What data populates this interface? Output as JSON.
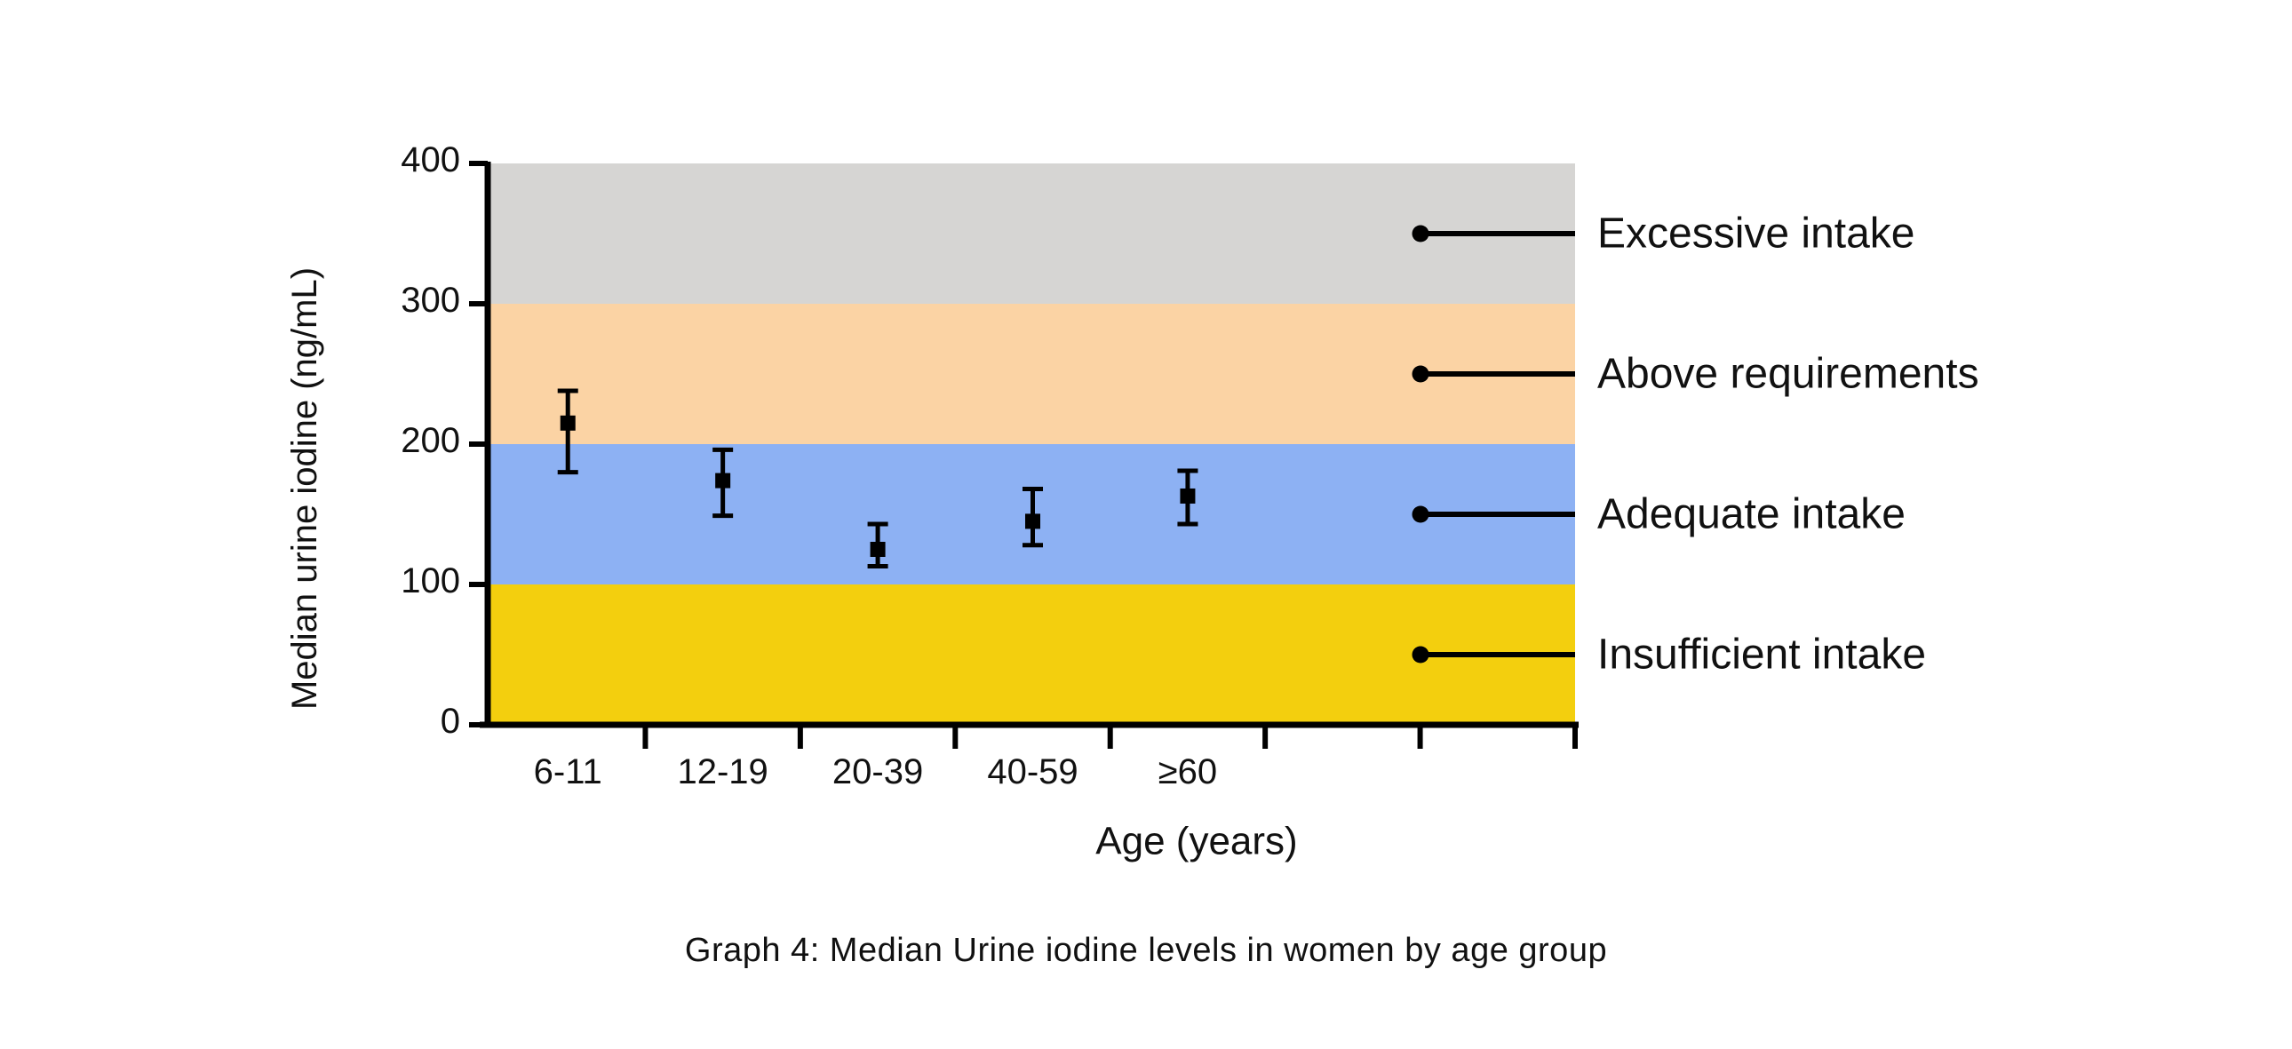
{
  "caption": "Graph 4: Median Urine iodine levels in women by age group",
  "chart_data": {
    "type": "scatter",
    "title": "Graph 4: Median Urine iodine levels in women by age group",
    "xlabel": "Age (years)",
    "ylabel": "Median urine iodine (ng/mL)",
    "categories": [
      "6-11",
      "12-19",
      "20-39",
      "40-59",
      "≥60"
    ],
    "series": [
      {
        "name": "Median urine iodine",
        "values": [
          215,
          174,
          125,
          145,
          163
        ],
        "error_upper": [
          238,
          196,
          143,
          168,
          181
        ],
        "error_lower": [
          180,
          149,
          113,
          128,
          143
        ]
      }
    ],
    "ylim": [
      0,
      400
    ],
    "yticks": [
      0,
      100,
      200,
      300,
      400
    ],
    "grid": false,
    "marker": "square",
    "legend_position": "right-callouts",
    "bands": [
      {
        "label": "Excessive intake",
        "from": 300,
        "to": 400,
        "color": "#d6d5d3",
        "callout_y": 350
      },
      {
        "label": "Above requirements",
        "from": 200,
        "to": 300,
        "color": "#fbd3a4",
        "callout_y": 250
      },
      {
        "label": "Adequate intake",
        "from": 100,
        "to": 200,
        "color": "#8db1f3",
        "callout_y": 150
      },
      {
        "label": "Insufficient intake",
        "from": 0,
        "to": 100,
        "color": "#f3cf0e",
        "callout_y": 50
      }
    ],
    "colors": {
      "marker": "#000000",
      "axis": "#000000",
      "callout": "#000000",
      "text": "#111111",
      "background": "#ffffff"
    }
  }
}
